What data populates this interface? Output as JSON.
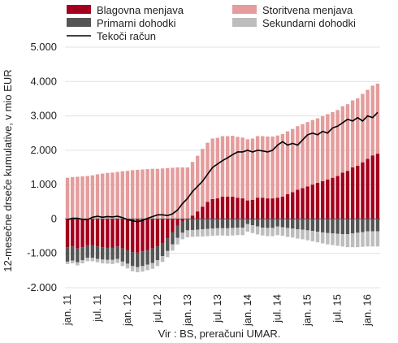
{
  "chart_data": {
    "type": "bar",
    "stacked": true,
    "ylabel": "12-mesečne drseče kumulative, v mio EUR",
    "source": "Vir : BS, preračuni  UMAR.",
    "ylim": [
      -2000,
      5000
    ],
    "yticks": [
      -2000,
      -1000,
      0,
      1000,
      2000,
      3000,
      4000,
      5000
    ],
    "ytick_labels": [
      "-2.000",
      "-1.000",
      "0",
      "1.000",
      "2.000",
      "3.000",
      "4.000",
      "5.000"
    ],
    "xtick_labels": [
      {
        "index": 0,
        "label": "jan. 11"
      },
      {
        "index": 6,
        "label": "jul. 11"
      },
      {
        "index": 12,
        "label": "jan. 12"
      },
      {
        "index": 18,
        "label": "jul. 12"
      },
      {
        "index": 24,
        "label": "jan. 13"
      },
      {
        "index": 30,
        "label": "jul. 13"
      },
      {
        "index": 36,
        "label": "jan. 14"
      },
      {
        "index": 42,
        "label": "jul. 14"
      },
      {
        "index": 48,
        "label": "jan. 15"
      },
      {
        "index": 54,
        "label": "jul. 15"
      },
      {
        "index": 60,
        "label": "jan. 16"
      }
    ],
    "legend": [
      {
        "name": "Blagovna menjava",
        "color": "#a3001d",
        "kind": "bar"
      },
      {
        "name": "Storitvena menjava",
        "color": "#e49c9c",
        "kind": "bar"
      },
      {
        "name": "Primarni dohodki",
        "color": "#555555",
        "kind": "bar"
      },
      {
        "name": "Sekundarni dohodki",
        "color": "#bdbdbd",
        "kind": "bar"
      },
      {
        "name": "Tekoči račun",
        "color": "#000000",
        "kind": "line"
      }
    ],
    "series": [
      {
        "name": "Blagovna menjava",
        "color": "#a3001d",
        "values": [
          -820,
          -800,
          -860,
          -820,
          -760,
          -760,
          -800,
          -820,
          -840,
          -840,
          -800,
          -860,
          -900,
          -960,
          -980,
          -940,
          -900,
          -860,
          -800,
          -700,
          -560,
          -380,
          -200,
          -60,
          0,
          100,
          220,
          360,
          500,
          580,
          600,
          650,
          650,
          650,
          620,
          600,
          540,
          560,
          620,
          620,
          600,
          600,
          620,
          650,
          720,
          780,
          850,
          900,
          950,
          1000,
          1050,
          1100,
          1150,
          1200,
          1250,
          1350,
          1400,
          1500,
          1550,
          1650,
          1750,
          1850,
          1900
        ]
      },
      {
        "name": "Storitvena menjava",
        "color": "#e49c9c",
        "values": [
          1200,
          1220,
          1230,
          1240,
          1250,
          1270,
          1300,
          1320,
          1340,
          1350,
          1370,
          1390,
          1400,
          1420,
          1430,
          1440,
          1450,
          1460,
          1460,
          1470,
          1480,
          1490,
          1500,
          1500,
          1500,
          1560,
          1620,
          1680,
          1720,
          1760,
          1760,
          1760,
          1760,
          1770,
          1770,
          1770,
          1780,
          1780,
          1790,
          1790,
          1800,
          1800,
          1810,
          1820,
          1830,
          1840,
          1850,
          1860,
          1870,
          1880,
          1880,
          1890,
          1900,
          1910,
          1920,
          1930,
          1940,
          1950,
          1960,
          1990,
          2010,
          2030,
          2040
        ]
      },
      {
        "name": "Primarni dohodki",
        "color": "#555555",
        "values": [
          -420,
          -410,
          -400,
          -380,
          -370,
          -370,
          -360,
          -360,
          -350,
          -350,
          -360,
          -380,
          -400,
          -410,
          -420,
          -430,
          -430,
          -420,
          -400,
          -380,
          -370,
          -360,
          -350,
          -340,
          -330,
          -320,
          -310,
          -300,
          -290,
          -280,
          -270,
          -270,
          -270,
          -260,
          -250,
          -250,
          -150,
          -180,
          -220,
          -250,
          -260,
          -260,
          -220,
          -240,
          -260,
          -280,
          -300,
          -310,
          -330,
          -350,
          -370,
          -390,
          -410,
          -420,
          -430,
          -440,
          -440,
          -420,
          -400,
          -380,
          -360,
          -360,
          -360
        ]
      },
      {
        "name": "Sekundarni dohodki",
        "color": "#bdbdbd",
        "values": [
          -70,
          -80,
          -90,
          -90,
          -100,
          -100,
          -100,
          -110,
          -110,
          -120,
          -120,
          -130,
          -140,
          -150,
          -150,
          -160,
          -160,
          -170,
          -170,
          -170,
          -180,
          -180,
          -190,
          -190,
          -200,
          -200,
          -200,
          -210,
          -210,
          -210,
          -210,
          -210,
          -220,
          -220,
          -220,
          -220,
          -220,
          -230,
          -230,
          -230,
          -240,
          -240,
          -250,
          -250,
          -260,
          -260,
          -270,
          -280,
          -290,
          -300,
          -310,
          -320,
          -330,
          -340,
          -350,
          -360,
          -380,
          -400,
          -420,
          -430,
          -440,
          -440,
          -440
        ]
      },
      {
        "name": "Tekoči račun",
        "color": "#000000",
        "type": "line",
        "values": [
          -20,
          20,
          20,
          -10,
          -20,
          50,
          80,
          50,
          70,
          60,
          80,
          40,
          -20,
          -50,
          -80,
          -40,
          20,
          70,
          120,
          120,
          100,
          150,
          260,
          450,
          600,
          800,
          950,
          1100,
          1300,
          1500,
          1600,
          1700,
          1780,
          1870,
          1950,
          1950,
          2000,
          1950,
          2000,
          1980,
          1950,
          2000,
          2150,
          2250,
          2150,
          2200,
          2150,
          2300,
          2450,
          2500,
          2450,
          2550,
          2500,
          2650,
          2700,
          2800,
          2900,
          2850,
          2950,
          2850,
          3000,
          2950,
          3100
        ]
      }
    ]
  }
}
